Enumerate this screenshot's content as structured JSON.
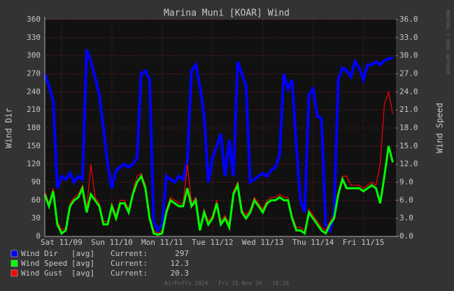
{
  "chart_data": {
    "type": "line",
    "title": "Marina Muni [KOAR] Wind",
    "y_label": "Wind Dir",
    "y2_label": "Wind Speed",
    "watermark": "RRDTOOL / TOBI OETIKER",
    "footer": "AirPuffs 2024 - Fri 15 Nov 24 - 16:20",
    "xlim": [
      4,
      171.5
    ],
    "xticks": [
      {
        "value": 12,
        "label": "Sat 11/09"
      },
      {
        "value": 36,
        "label": "Sun 11/10"
      },
      {
        "value": 60,
        "label": "Mon 11/11"
      },
      {
        "value": 84,
        "label": "Tue 11/12"
      },
      {
        "value": 108,
        "label": "Wed 11/13"
      },
      {
        "value": 132,
        "label": "Thu 11/14"
      },
      {
        "value": 156,
        "label": "Fri 11/15"
      }
    ],
    "ylim": [
      0,
      360
    ],
    "yticks": [
      0,
      30,
      60,
      90,
      120,
      150,
      180,
      210,
      240,
      270,
      300,
      330,
      360
    ],
    "y2lim": [
      0,
      36
    ],
    "y2ticks": [
      {
        "value": 0,
        "label": "0.0"
      },
      {
        "value": 3,
        "label": "3.0"
      },
      {
        "value": 6,
        "label": "6.0"
      },
      {
        "value": 9,
        "label": "9.0"
      },
      {
        "value": 12,
        "label": "12.0"
      },
      {
        "value": 15,
        "label": "15.0"
      },
      {
        "value": 18,
        "label": "18.0"
      },
      {
        "value": 21,
        "label": "21.0"
      },
      {
        "value": 24,
        "label": "24.0"
      },
      {
        "value": 27,
        "label": "27.0"
      },
      {
        "value": 30,
        "label": "30.0"
      },
      {
        "value": 33,
        "label": "33.0"
      },
      {
        "value": 36,
        "label": "36.0"
      }
    ],
    "grid": true,
    "x": [
      4,
      6,
      8,
      10,
      12,
      14,
      16,
      18,
      20,
      22,
      24,
      26,
      28,
      30,
      32,
      34,
      36,
      38,
      40,
      42,
      44,
      46,
      48,
      50,
      52,
      54,
      56,
      58,
      60,
      62,
      64,
      66,
      68,
      70,
      72,
      74,
      76,
      78,
      80,
      82,
      84,
      86,
      88,
      90,
      92,
      94,
      96,
      98,
      100,
      102,
      104,
      106,
      108,
      110,
      112,
      114,
      116,
      118,
      120,
      122,
      124,
      126,
      128,
      130,
      132,
      134,
      136,
      138,
      140,
      142,
      144,
      146,
      148,
      150,
      152,
      154,
      156,
      158,
      160,
      162,
      164,
      166,
      168,
      170
    ],
    "consolidation": "[avg]",
    "current_label": "Current:",
    "series": [
      {
        "name": "Wind Dir",
        "color": "#0000ff",
        "axis": "y",
        "width": 4,
        "current": 297,
        "values": [
          270,
          250,
          225,
          80,
          100,
          95,
          105,
          90,
          100,
          95,
          310,
          290,
          265,
          235,
          180,
          120,
          80,
          110,
          115,
          120,
          115,
          120,
          130,
          270,
          275,
          260,
          25,
          10,
          20,
          100,
          95,
          90,
          100,
          95,
          125,
          275,
          285,
          250,
          200,
          90,
          130,
          150,
          170,
          100,
          160,
          100,
          290,
          270,
          250,
          90,
          95,
          100,
          105,
          100,
          110,
          115,
          135,
          270,
          245,
          260,
          150,
          60,
          40,
          235,
          245,
          200,
          195,
          20,
          10,
          40,
          260,
          280,
          275,
          265,
          290,
          280,
          260,
          285,
          285,
          290,
          285,
          292,
          295,
          297
        ]
      },
      {
        "name": "Wind Speed",
        "color": "#00ff00",
        "axis": "y2",
        "width": 3,
        "current": 12.3,
        "values": [
          7,
          5,
          7.5,
          2,
          0.5,
          1,
          5,
          6,
          6.5,
          8,
          4,
          7,
          6,
          5,
          2,
          2,
          5,
          3,
          5.5,
          5.5,
          4,
          7,
          9,
          10,
          8,
          3,
          0.5,
          0.3,
          0.5,
          4,
          6,
          5.5,
          5,
          5,
          8,
          5,
          6,
          1,
          4,
          2,
          3,
          5.5,
          2,
          3,
          1.5,
          7,
          8.5,
          4,
          3,
          4,
          6,
          5,
          4,
          5.5,
          6,
          6,
          6.5,
          6,
          6,
          3,
          1,
          1,
          0.5,
          4,
          3,
          2,
          1,
          0.5,
          2,
          3,
          7,
          9.5,
          8,
          8,
          8,
          8,
          7.5,
          8,
          8.5,
          8,
          5.5,
          10,
          15,
          12.3
        ]
      },
      {
        "name": "Wind Gust",
        "color": "#ff0000",
        "axis": "y2",
        "width": 1.2,
        "current": 20.3,
        "values": [
          7.5,
          5.5,
          8,
          2.5,
          1,
          1.5,
          5.5,
          6.5,
          7,
          8.5,
          4.5,
          12,
          6.5,
          5.5,
          2.5,
          2.5,
          5.5,
          3.5,
          6,
          6,
          4.5,
          7.5,
          10,
          10.5,
          8.5,
          3.5,
          1,
          0.5,
          1,
          4.5,
          6.5,
          6,
          5.5,
          5.5,
          12,
          5.5,
          6.5,
          1.5,
          4.5,
          2.5,
          3.5,
          6,
          2.5,
          3.5,
          2,
          7.5,
          9,
          4.5,
          3.5,
          4.5,
          6.5,
          5.5,
          4.5,
          6,
          6.5,
          6.5,
          7,
          6.5,
          6.5,
          3.5,
          1.5,
          1.5,
          1,
          4.5,
          3.5,
          2.5,
          1.5,
          1,
          2.5,
          3.5,
          7.5,
          10,
          10,
          8.5,
          8.5,
          8.5,
          8,
          8.5,
          9,
          8.5,
          12,
          22,
          24,
          20.3
        ]
      }
    ],
    "draw_order": [
      0,
      2,
      1
    ]
  }
}
